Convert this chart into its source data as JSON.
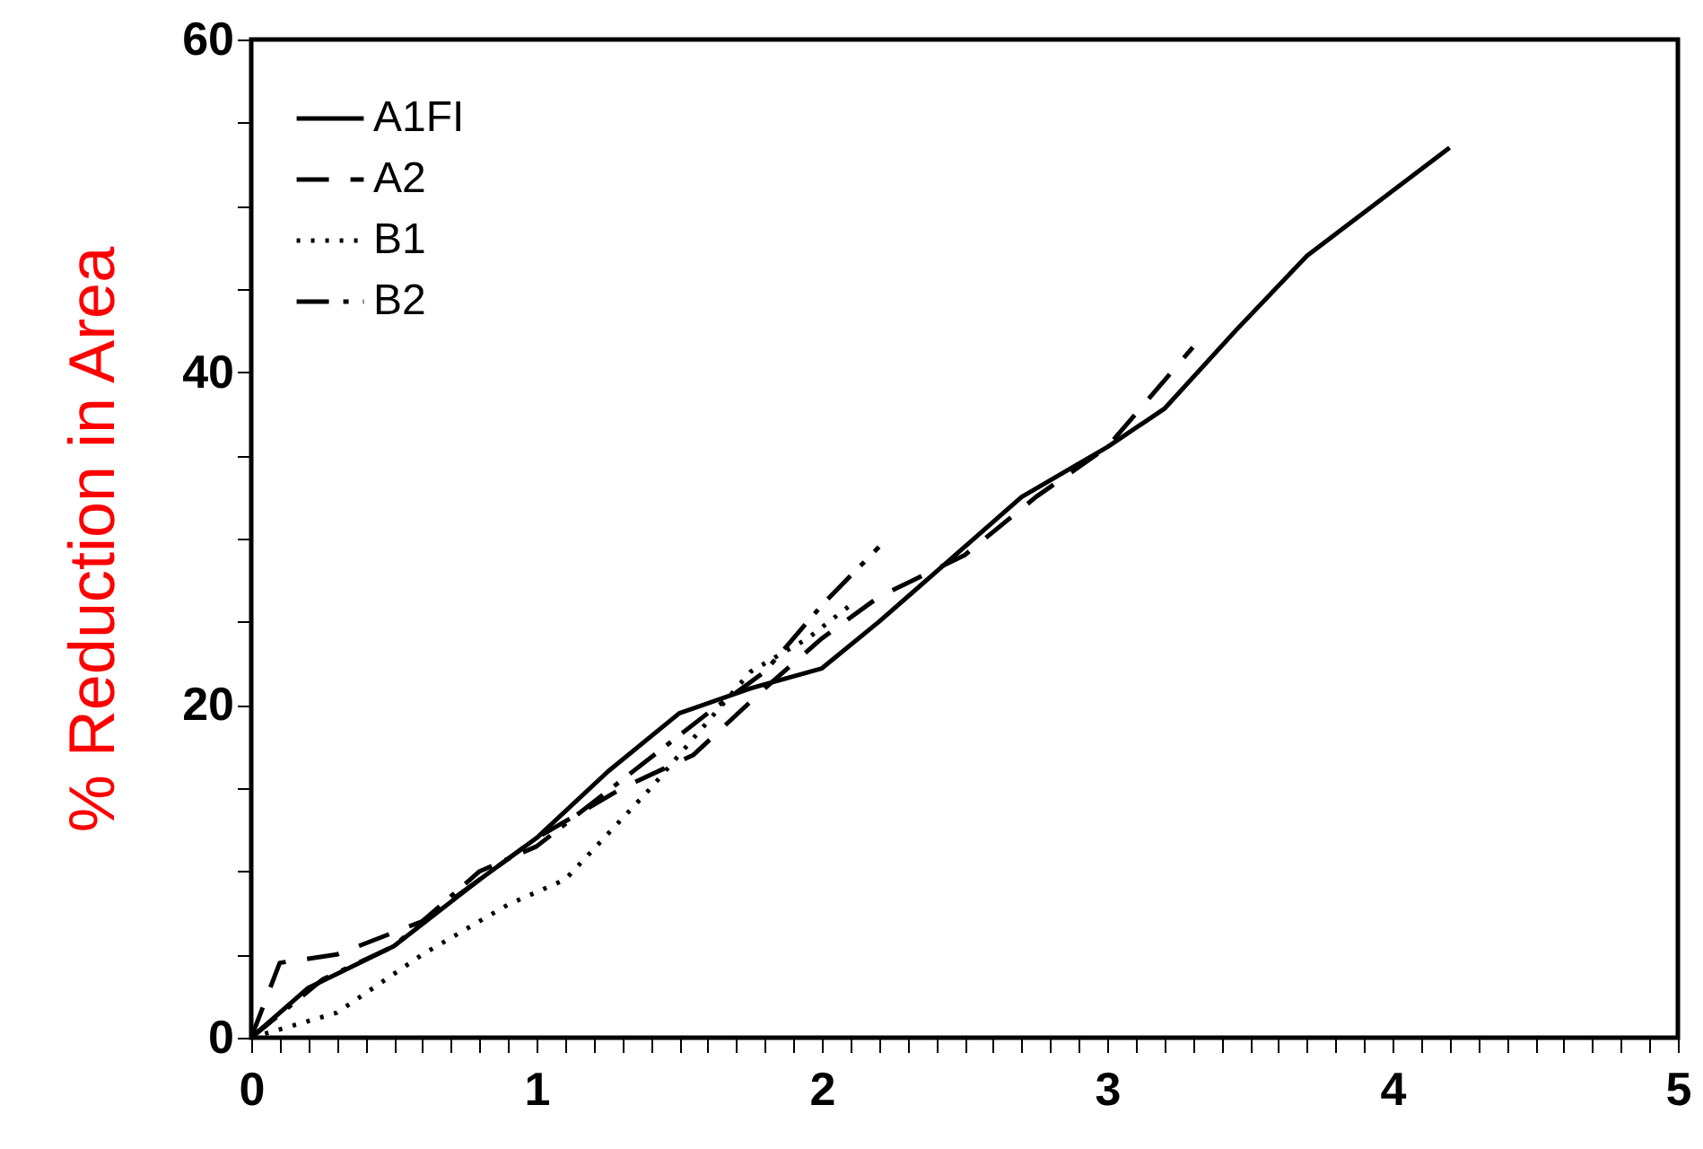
{
  "chart_data": {
    "type": "line",
    "ylabel": "% Reduction in Area",
    "xlim": [
      0,
      5
    ],
    "ylim": [
      0,
      60
    ],
    "xticks": [
      0,
      {
        "value": 0.1,
        "label": null
      },
      {
        "value": 0.2,
        "label": null
      },
      {
        "value": 0.3,
        "label": null
      },
      {
        "value": 0.4,
        "label": null
      },
      {
        "value": 0.5,
        "label": null
      },
      {
        "value": 0.6,
        "label": null
      },
      {
        "value": 0.7,
        "label": null
      },
      {
        "value": 0.8,
        "label": null
      },
      {
        "value": 0.9,
        "label": null
      },
      1,
      {
        "value": 1.1,
        "label": null
      },
      {
        "value": 1.2,
        "label": null
      },
      {
        "value": 1.3,
        "label": null
      },
      {
        "value": 1.4,
        "label": null
      },
      {
        "value": 1.5,
        "label": null
      },
      {
        "value": 1.6,
        "label": null
      },
      {
        "value": 1.7,
        "label": null
      },
      {
        "value": 1.8,
        "label": null
      },
      {
        "value": 1.9,
        "label": null
      },
      2,
      {
        "value": 2.1,
        "label": null
      },
      {
        "value": 2.2,
        "label": null
      },
      {
        "value": 2.3,
        "label": null
      },
      {
        "value": 2.4,
        "label": null
      },
      {
        "value": 2.5,
        "label": null
      },
      {
        "value": 2.6,
        "label": null
      },
      {
        "value": 2.7,
        "label": null
      },
      {
        "value": 2.8,
        "label": null
      },
      {
        "value": 2.9,
        "label": null
      },
      3,
      {
        "value": 3.1,
        "label": null
      },
      {
        "value": 3.2,
        "label": null
      },
      {
        "value": 3.3,
        "label": null
      },
      {
        "value": 3.4,
        "label": null
      },
      {
        "value": 3.5,
        "label": null
      },
      {
        "value": 3.6,
        "label": null
      },
      {
        "value": 3.7,
        "label": null
      },
      {
        "value": 3.8,
        "label": null
      },
      {
        "value": 3.9,
        "label": null
      },
      4,
      {
        "value": 4.1,
        "label": null
      },
      {
        "value": 4.2,
        "label": null
      },
      {
        "value": 4.3,
        "label": null
      },
      {
        "value": 4.4,
        "label": null
      },
      {
        "value": 4.5,
        "label": null
      },
      {
        "value": 4.6,
        "label": null
      },
      {
        "value": 4.7,
        "label": null
      },
      {
        "value": 4.8,
        "label": null
      },
      {
        "value": 4.9,
        "label": null
      },
      5
    ],
    "yticks": [
      0,
      {
        "value": 5,
        "label": null
      },
      {
        "value": 10,
        "label": null
      },
      {
        "value": 15,
        "label": null
      },
      20,
      {
        "value": 25,
        "label": null
      },
      {
        "value": 30,
        "label": null
      },
      {
        "value": 35,
        "label": null
      },
      40,
      {
        "value": 45,
        "label": null
      },
      {
        "value": 50,
        "label": null
      },
      {
        "value": 55,
        "label": null
      },
      60
    ],
    "grid": false,
    "legend": "top left",
    "marker": "none",
    "series": [
      {
        "name": "A1FI",
        "color": "#000000",
        "line_style": "solid",
        "x": [
          0,
          0.2,
          0.5,
          0.8,
          1,
          1.25,
          1.5,
          1.75,
          2,
          2.2,
          2.4,
          2.7,
          3,
          3.2,
          3.45,
          3.7,
          4.2
        ],
        "values": [
          0,
          3,
          5.5,
          9.5,
          12,
          16,
          19.5,
          21,
          22.2,
          25,
          28,
          32.5,
          35.5,
          37.8,
          42.5,
          47,
          53.5
        ]
      },
      {
        "name": "A2",
        "color": "#000000",
        "line_style": "dashed",
        "x": [
          0,
          0.1,
          0.3,
          0.6,
          1,
          1.3,
          1.55,
          1.8,
          2,
          2.2,
          2.5,
          2.75,
          3,
          3.3
        ],
        "values": [
          0,
          4.5,
          5,
          7,
          12,
          15,
          17,
          21,
          24,
          26.5,
          29,
          32.5,
          35.5,
          41.5
        ]
      },
      {
        "name": "B1",
        "color": "#000000",
        "line_style": "dotted",
        "x": [
          0,
          0.3,
          0.6,
          0.9,
          1.1,
          1.4,
          1.75,
          1.95,
          2.1
        ],
        "values": [
          0,
          1.5,
          5,
          8,
          9.5,
          15,
          22,
          24,
          26
        ]
      },
      {
        "name": "B2",
        "color": "#000000",
        "line_style": "dashdot",
        "x": [
          0,
          0.25,
          0.5,
          0.8,
          1,
          1.3,
          1.6,
          1.8,
          2,
          2.2
        ],
        "values": [
          0,
          3.5,
          5.5,
          10,
          11.5,
          15.5,
          19.5,
          22,
          26,
          29.5
        ]
      }
    ]
  }
}
